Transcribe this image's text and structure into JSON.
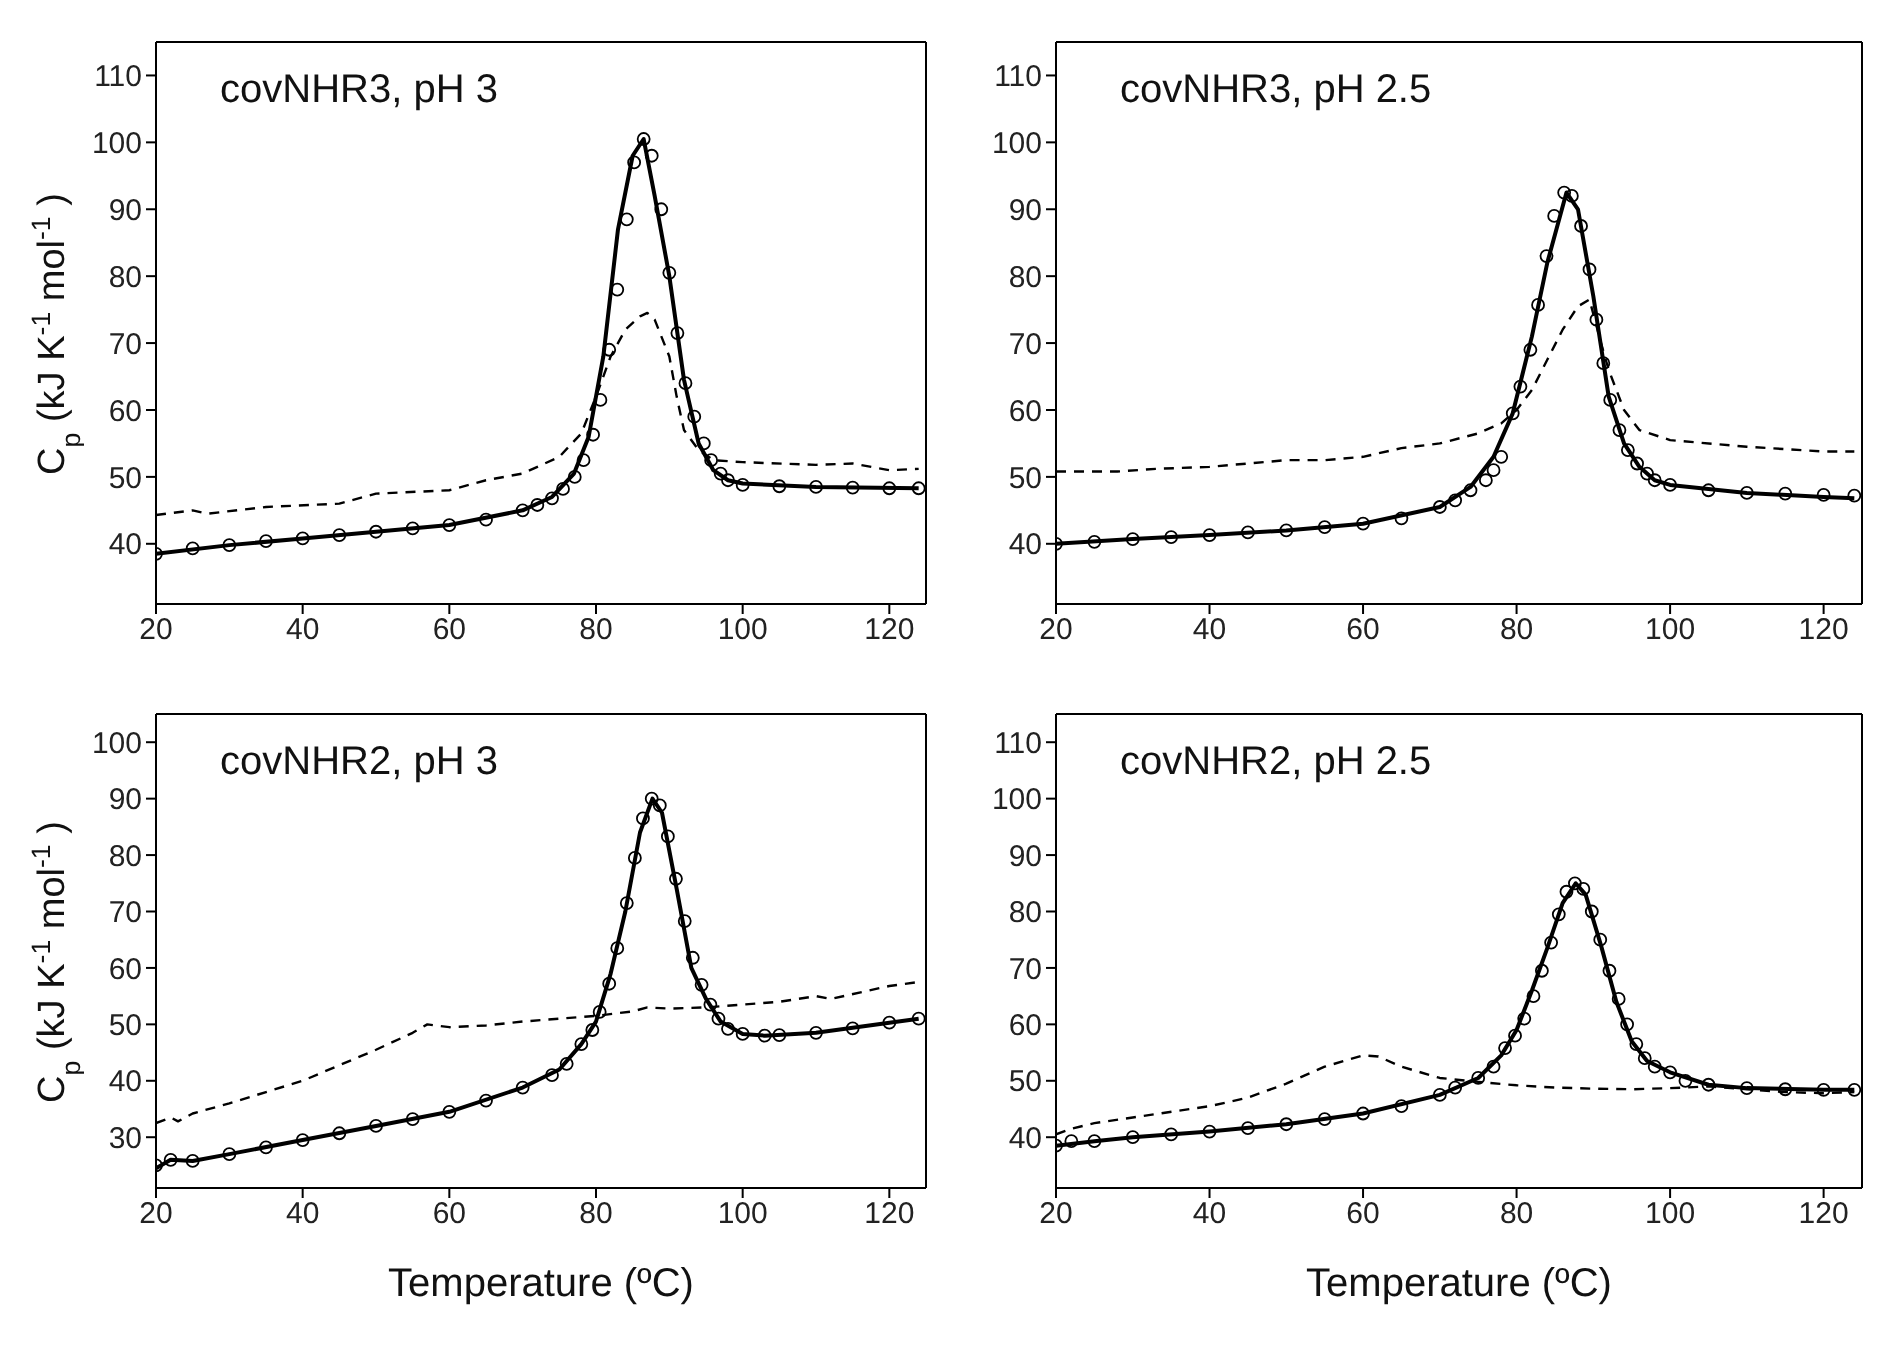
{
  "chart_data": [
    {
      "type": "line",
      "title": "covNHR3, pH 3",
      "ylabel": "C$_{p}$ (kJ K$^{-1}$ mol$^{-1}$)",
      "xlim": [
        20,
        125
      ],
      "xticks": [
        20,
        40,
        60,
        80,
        100,
        120
      ],
      "ylim": [
        31,
        115
      ],
      "yticks": [
        40,
        50,
        60,
        70,
        80,
        90,
        100,
        110
      ],
      "series": [
        {
          "color": "#000000",
          "line_style": "dashed",
          "x": [
            20,
            25,
            27,
            35,
            45,
            50,
            60,
            65,
            70,
            75,
            78,
            80,
            82,
            84,
            86,
            87,
            88,
            90,
            91,
            92,
            94,
            96,
            100,
            110,
            115,
            120,
            124
          ],
          "values": [
            44.3,
            45,
            44.5,
            45.5,
            46,
            47.5,
            48,
            49.5,
            50.5,
            53,
            56.5,
            62,
            68,
            72,
            74,
            74.5,
            73.5,
            68,
            62,
            57,
            54,
            52.5,
            52.2,
            51.8,
            52,
            51,
            51.2
          ]
        },
        {
          "color": "#000000",
          "line_style": "solid",
          "x": [
            20,
            30,
            40,
            50,
            60,
            70,
            74,
            77,
            79,
            81,
            83,
            85,
            86.5,
            88,
            90,
            92,
            94,
            96,
            98,
            100,
            110,
            124
          ],
          "values": [
            38.5,
            39.8,
            40.8,
            41.8,
            42.8,
            45,
            47,
            50.5,
            56,
            68,
            87,
            98,
            100.5,
            92,
            80,
            64.5,
            55,
            51,
            49.5,
            49,
            48.5,
            48.3
          ]
        },
        {
          "type": "scatter",
          "color": "#000000",
          "marker": "circle",
          "x": [
            20,
            25,
            30,
            35,
            40,
            45,
            50,
            55,
            60,
            65,
            70,
            72,
            74,
            75.5,
            77.1,
            78.3,
            79.6,
            80.6,
            81.8,
            82.9,
            84.2,
            85.2,
            86.5,
            87.6,
            88.9,
            90,
            91.1,
            92.2,
            93.4,
            94.7,
            95.7,
            97,
            98,
            100,
            105,
            110,
            115,
            120,
            124
          ],
          "values": [
            38.5,
            39.3,
            39.8,
            40.4,
            40.8,
            41.3,
            41.8,
            42.3,
            42.8,
            43.6,
            45,
            45.8,
            46.8,
            48.2,
            50,
            52.5,
            56.3,
            61.5,
            69,
            78,
            88.5,
            97,
            100.5,
            98,
            90,
            80.5,
            71.5,
            64,
            59,
            55,
            52.5,
            50.5,
            49.5,
            48.8,
            48.6,
            48.5,
            48.4,
            48.3,
            48.3
          ]
        }
      ]
    },
    {
      "type": "line",
      "title": "covNHR3, pH 2.5",
      "xlim": [
        20,
        125
      ],
      "xticks": [
        20,
        40,
        60,
        80,
        100,
        120
      ],
      "ylim": [
        31,
        115
      ],
      "yticks": [
        40,
        50,
        60,
        70,
        80,
        90,
        100,
        110
      ],
      "series": [
        {
          "color": "#000000",
          "line_style": "dashed",
          "x": [
            20,
            28,
            33,
            40,
            50,
            55,
            60,
            65,
            70,
            75,
            78,
            80,
            82,
            84,
            86,
            88,
            89.5,
            91,
            92,
            94,
            96,
            100,
            110,
            120,
            124
          ],
          "values": [
            50.8,
            50.8,
            51.2,
            51.5,
            52.5,
            52.5,
            53,
            54.3,
            55,
            56.5,
            58,
            60,
            63,
            67.5,
            72,
            75.5,
            76.5,
            70,
            66,
            60,
            57,
            55.5,
            54.5,
            53.8,
            53.8
          ]
        },
        {
          "color": "#000000",
          "line_style": "solid",
          "x": [
            20,
            30,
            40,
            50,
            60,
            70,
            74,
            77,
            79.5,
            82,
            84,
            86.5,
            88,
            90,
            92,
            94,
            96,
            98,
            100,
            110,
            120,
            124
          ],
          "values": [
            40,
            40.7,
            41.3,
            42,
            43,
            45.5,
            48.5,
            53,
            59.5,
            71,
            82,
            92.5,
            90,
            77,
            62,
            55,
            51.5,
            49.5,
            48.8,
            47.6,
            47,
            46.8
          ]
        },
        {
          "type": "scatter",
          "color": "#000000",
          "marker": "circle",
          "x": [
            20,
            25,
            30,
            35,
            40,
            45,
            50,
            55,
            60,
            65,
            70,
            72,
            74,
            76,
            77,
            78,
            79.5,
            80.5,
            81.8,
            82.8,
            83.9,
            84.9,
            86.2,
            87.2,
            88.4,
            89.5,
            90.4,
            91.3,
            92.2,
            93.4,
            94.5,
            95.7,
            97,
            98,
            100,
            105,
            110,
            115,
            120,
            124
          ],
          "values": [
            40,
            40.3,
            40.7,
            41,
            41.3,
            41.7,
            42,
            42.5,
            43,
            43.8,
            45.5,
            46.5,
            48,
            49.5,
            51,
            53,
            59.5,
            63.5,
            69,
            75.7,
            83,
            89,
            92.5,
            92,
            87.5,
            81,
            73.5,
            67,
            61.5,
            57,
            54,
            52,
            50.5,
            49.5,
            48.8,
            48,
            47.6,
            47.5,
            47.3,
            47.2
          ]
        }
      ]
    },
    {
      "type": "line",
      "title": "covNHR2, pH 3",
      "xlabel": "Temperature (ºC)",
      "ylabel": "C$_{p}$ (kJ K$^{-1}$ mol$^{-1}$)",
      "xlim": [
        20,
        125
      ],
      "xticks": [
        20,
        40,
        60,
        80,
        100,
        120
      ],
      "ylim": [
        21,
        105
      ],
      "yticks": [
        30,
        40,
        50,
        60,
        70,
        80,
        90,
        100
      ],
      "series": [
        {
          "color": "#000000",
          "line_style": "dashed",
          "x": [
            20,
            22,
            23,
            25,
            30,
            40,
            50,
            55,
            57,
            60,
            65,
            70,
            75,
            80,
            85,
            87,
            90,
            95,
            100,
            105,
            110,
            112,
            120,
            124
          ],
          "values": [
            32.5,
            33.5,
            32.8,
            34.2,
            36,
            40,
            45.5,
            48.5,
            50,
            49.5,
            49.8,
            50.5,
            51,
            51.5,
            52.3,
            53,
            52.8,
            53,
            53.5,
            54,
            55,
            54.5,
            56.8,
            57.5
          ]
        },
        {
          "color": "#000000",
          "line_style": "solid",
          "x": [
            20,
            22,
            25,
            30,
            40,
            50,
            60,
            70,
            75,
            78,
            80,
            82,
            84,
            86,
            87.7,
            89,
            91,
            93,
            95,
            97,
            100,
            103,
            110,
            120,
            124
          ],
          "values": [
            24.5,
            26,
            25.8,
            27,
            29.5,
            32,
            34.5,
            38.8,
            42,
            46.5,
            50.5,
            59,
            70,
            84,
            90,
            87.5,
            74,
            60,
            54.5,
            50.5,
            48.3,
            48,
            48.5,
            50.3,
            51
          ]
        },
        {
          "type": "scatter",
          "color": "#000000",
          "marker": "circle",
          "x": [
            20,
            22,
            25,
            30,
            35,
            40,
            45,
            50,
            55,
            60,
            65,
            70,
            74,
            76,
            78,
            79.5,
            80.5,
            81.8,
            82.9,
            84.2,
            85.3,
            86.4,
            87.6,
            88.7,
            89.8,
            90.9,
            92.1,
            93.2,
            94.4,
            95.6,
            96.7,
            98,
            100,
            103,
            105,
            110,
            115,
            120,
            124
          ],
          "values": [
            25,
            26,
            25.8,
            27,
            28.2,
            29.5,
            30.7,
            32,
            33.2,
            34.5,
            36.5,
            38.8,
            41,
            43,
            46.5,
            49,
            52.2,
            57.2,
            63.5,
            71.5,
            79.5,
            86.5,
            90,
            88.8,
            83.3,
            75.8,
            68.3,
            61.8,
            57,
            53.5,
            51,
            49.2,
            48.3,
            48,
            48.1,
            48.5,
            49.3,
            50.3,
            51
          ]
        }
      ]
    },
    {
      "type": "line",
      "title": "covNHR2, pH 2.5",
      "xlabel": "Temperature (ºC)",
      "xlim": [
        20,
        125
      ],
      "xticks": [
        20,
        40,
        60,
        80,
        100,
        120
      ],
      "ylim": [
        31,
        115
      ],
      "yticks": [
        40,
        50,
        60,
        70,
        80,
        90,
        100,
        110
      ],
      "series": [
        {
          "color": "#000000",
          "line_style": "dashed",
          "x": [
            20,
            22,
            25,
            30,
            40,
            45,
            50,
            55,
            60,
            62,
            65,
            70,
            75,
            80,
            85,
            90,
            95,
            100,
            105,
            110,
            115,
            120,
            124
          ],
          "values": [
            40.5,
            41.5,
            42.5,
            43.5,
            45.5,
            47,
            49.5,
            52.5,
            54.5,
            54.3,
            52.5,
            50.5,
            49.8,
            49.2,
            48.8,
            48.6,
            48.5,
            48.7,
            49,
            48.5,
            48,
            47.8,
            48
          ]
        },
        {
          "color": "#000000",
          "line_style": "solid",
          "x": [
            20,
            25,
            30,
            40,
            50,
            60,
            70,
            75,
            78,
            80,
            82,
            84,
            86,
            87.7,
            89,
            91,
            93,
            95,
            97,
            100,
            105,
            110,
            120,
            124
          ],
          "values": [
            38.5,
            39.3,
            40,
            41,
            42.3,
            44.2,
            47.5,
            50.5,
            54.5,
            59,
            66,
            73.5,
            81.5,
            85,
            83,
            74,
            64,
            57,
            53.5,
            51.5,
            49.3,
            48.7,
            48.4,
            48.4
          ]
        },
        {
          "type": "scatter",
          "color": "#000000",
          "marker": "circle",
          "x": [
            20,
            22,
            25,
            30,
            35,
            40,
            45,
            50,
            55,
            60,
            65,
            70,
            72,
            75,
            77,
            78.5,
            79.8,
            81,
            82.2,
            83.3,
            84.5,
            85.5,
            86.5,
            87.6,
            88.7,
            89.8,
            90.9,
            92.1,
            93.3,
            94.4,
            95.6,
            96.7,
            98,
            100,
            102,
            105,
            110,
            115,
            120,
            124
          ],
          "values": [
            38.5,
            39.3,
            39.3,
            40,
            40.5,
            41,
            41.6,
            42.3,
            43.2,
            44.2,
            45.5,
            47.5,
            48.8,
            50.5,
            52.5,
            55.8,
            58,
            61,
            65,
            69.5,
            74.5,
            79.5,
            83.5,
            85,
            84,
            80,
            75,
            69.5,
            64.5,
            60,
            56.5,
            54,
            52.5,
            51.5,
            50,
            49.3,
            48.7,
            48.5,
            48.4,
            48.4
          ]
        }
      ]
    }
  ]
}
